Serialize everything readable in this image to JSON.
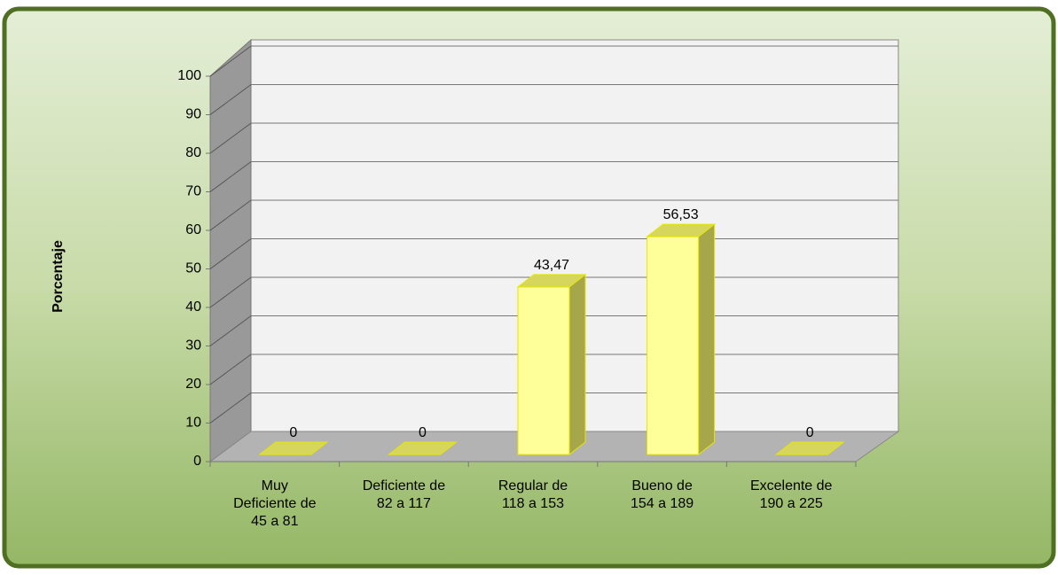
{
  "chart_data": {
    "type": "bar3d",
    "ylabel": "Porcentaje",
    "categories": [
      "Muy\nDeficiente de\n45 a 81",
      "Deficiente de\n82 a 117",
      "Regular de\n118 a 153",
      "Bueno de\n154 a 189",
      "Excelente de\n190 a 225"
    ],
    "values": [
      0,
      0,
      43.47,
      56.53,
      0
    ],
    "value_labels": [
      "0",
      "0",
      "43,47",
      "56,53",
      "0"
    ],
    "color": "#ffff99",
    "ylim": [
      0,
      100
    ],
    "yticks": [
      0,
      10,
      20,
      30,
      40,
      50,
      60,
      70,
      80,
      90,
      100
    ],
    "grid": true
  }
}
